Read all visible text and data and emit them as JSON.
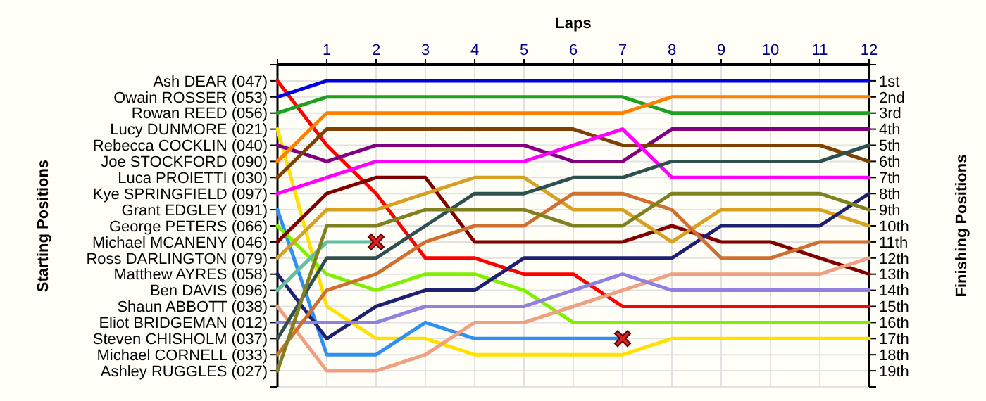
{
  "chart_data": {
    "type": "line",
    "xlabel": "Laps",
    "annotations": [
      "Starting Positions"
    ],
    "y2label": "Finishing Positions",
    "grid": true,
    "marker": "none",
    "line_style": "solid",
    "x": [
      0,
      1,
      2,
      3,
      4,
      5,
      6,
      7,
      8,
      9,
      10,
      11,
      12
    ],
    "xlim": [
      0,
      12
    ],
    "xticks": [
      {
        "value": 0,
        "label": null
      },
      1,
      2,
      3,
      4,
      5,
      6,
      7,
      8,
      9,
      10,
      11,
      12
    ],
    "y2lim": [
      20,
      0
    ],
    "y2ticks": [
      {
        "value": 0,
        "label": null
      },
      {
        "value": 1,
        "label": "1st"
      },
      {
        "value": 2,
        "label": "2nd"
      },
      {
        "value": 3,
        "label": "3rd"
      },
      {
        "value": 4,
        "label": "4th"
      },
      {
        "value": 5,
        "label": "5th"
      },
      {
        "value": 6,
        "label": "6th"
      },
      {
        "value": 7,
        "label": "7th"
      },
      {
        "value": 8,
        "label": "8th"
      },
      {
        "value": 9,
        "label": "9th"
      },
      {
        "value": 10,
        "label": "10th"
      },
      {
        "value": 11,
        "label": "11th"
      },
      {
        "value": 12,
        "label": "12th"
      },
      {
        "value": 13,
        "label": "13th"
      },
      {
        "value": 14,
        "label": "14th"
      },
      {
        "value": 15,
        "label": "15th"
      },
      {
        "value": 16,
        "label": "16th"
      },
      {
        "value": 17,
        "label": "17th"
      },
      {
        "value": 18,
        "label": "18th"
      },
      {
        "value": 19,
        "label": "19th"
      },
      {
        "value": 20,
        "label": null
      }
    ],
    "series": [
      {
        "name": "Ash DEAR (047)",
        "axis": "y2",
        "color": "#ff0000",
        "values": [
          1,
          5,
          8,
          12,
          12,
          13,
          13,
          15,
          15,
          15,
          15,
          15,
          15
        ]
      },
      {
        "name": "Owain ROSSER (053)",
        "axis": "y2",
        "color": "#0000e0",
        "values": [
          2,
          1,
          1,
          1,
          1,
          1,
          1,
          1,
          1,
          1,
          1,
          1,
          1
        ]
      },
      {
        "name": "Rowan REED (056)",
        "axis": "y2",
        "color": "#20a020",
        "values": [
          3,
          2,
          2,
          2,
          2,
          2,
          2,
          2,
          3,
          3,
          3,
          3,
          3
        ]
      },
      {
        "name": "Lucy DUNMORE (021)",
        "axis": "y2",
        "color": "#ffe000",
        "values": [
          4,
          15,
          17,
          17,
          18,
          18,
          18,
          18,
          17,
          17,
          17,
          17,
          17
        ]
      },
      {
        "name": "Rebecca COCKLIN (040)",
        "axis": "y2",
        "color": "#800080",
        "values": [
          5,
          6,
          5,
          5,
          5,
          5,
          6,
          6,
          4,
          4,
          4,
          4,
          4
        ]
      },
      {
        "name": "Joe STOCKFORD (090)",
        "axis": "y2",
        "color": "#ff8000",
        "values": [
          6,
          3,
          3,
          3,
          3,
          3,
          3,
          3,
          2,
          2,
          2,
          2,
          2
        ]
      },
      {
        "name": "Luca PROIETTI (030)",
        "axis": "y2",
        "color": "#804000",
        "values": [
          7,
          4,
          4,
          4,
          4,
          4,
          4,
          5,
          5,
          5,
          5,
          5,
          6
        ]
      },
      {
        "name": "Kye SPRINGFIELD (097)",
        "axis": "y2",
        "color": "#ff00ff",
        "values": [
          8,
          7,
          6,
          6,
          6,
          6,
          5,
          4,
          7,
          7,
          7,
          7,
          7
        ]
      },
      {
        "name": "Grant EDGLEY (091)",
        "axis": "y2",
        "color": "#3090f0",
        "values": [
          9,
          18,
          18,
          16,
          17,
          17,
          17,
          17,
          null,
          null,
          null,
          null,
          null
        ]
      },
      {
        "name": "George PETERS (066)",
        "axis": "y2",
        "color": "#80f000",
        "values": [
          10,
          13,
          14,
          13,
          13,
          14,
          16,
          16,
          16,
          16,
          16,
          16,
          16
        ]
      },
      {
        "name": "Michael MCANENY (046)",
        "axis": "y2",
        "color": "#800000",
        "values": [
          11,
          8,
          7,
          7,
          11,
          11,
          11,
          11,
          10,
          11,
          11,
          12,
          13
        ]
      },
      {
        "name": "Ross DARLINGTON (079)",
        "axis": "y2",
        "color": "#d8a020",
        "values": [
          12,
          9,
          9,
          8,
          7,
          7,
          9,
          9,
          11,
          9,
          9,
          9,
          10
        ]
      },
      {
        "name": "Matthew AYRES (058)",
        "axis": "y2",
        "color": "#202070",
        "values": [
          13,
          17,
          15,
          14,
          14,
          12,
          12,
          12,
          12,
          10,
          10,
          10,
          8
        ]
      },
      {
        "name": "Ben DAVIS (096)",
        "axis": "y2",
        "color": "#60c0a0",
        "values": [
          14,
          11,
          11,
          null,
          null,
          null,
          null,
          null,
          null,
          null,
          null,
          null,
          null
        ]
      },
      {
        "name": "Shaun ABBOTT (038)",
        "axis": "y2",
        "color": "#f0a080",
        "values": [
          15,
          19,
          19,
          18,
          16,
          16,
          15,
          14,
          13,
          13,
          13,
          13,
          12
        ]
      },
      {
        "name": "Eliot BRIDGEMAN (012)",
        "axis": "y2",
        "color": "#9080e0",
        "values": [
          16,
          16,
          16,
          15,
          15,
          15,
          14,
          13,
          14,
          14,
          14,
          14,
          14
        ]
      },
      {
        "name": "Steven CHISHOLM (037)",
        "axis": "y2",
        "color": "#305050",
        "values": [
          17,
          12,
          12,
          10,
          8,
          8,
          7,
          7,
          6,
          6,
          6,
          6,
          5
        ]
      },
      {
        "name": "Michael CORNELL (033)",
        "axis": "y2",
        "color": "#d07030",
        "values": [
          18,
          14,
          13,
          11,
          10,
          10,
          8,
          8,
          9,
          12,
          12,
          11,
          11
        ]
      },
      {
        "name": "Ashley RUGGLES (027)",
        "axis": "y2",
        "color": "#808020",
        "values": [
          19,
          10,
          10,
          9,
          9,
          9,
          10,
          10,
          8,
          8,
          8,
          8,
          9
        ]
      },
      {
        "type": "scatter",
        "axis": "y2",
        "marker": "cross",
        "color": "#e02020",
        "x": [
          2,
          7
        ],
        "values": [
          11,
          17
        ]
      }
    ]
  }
}
